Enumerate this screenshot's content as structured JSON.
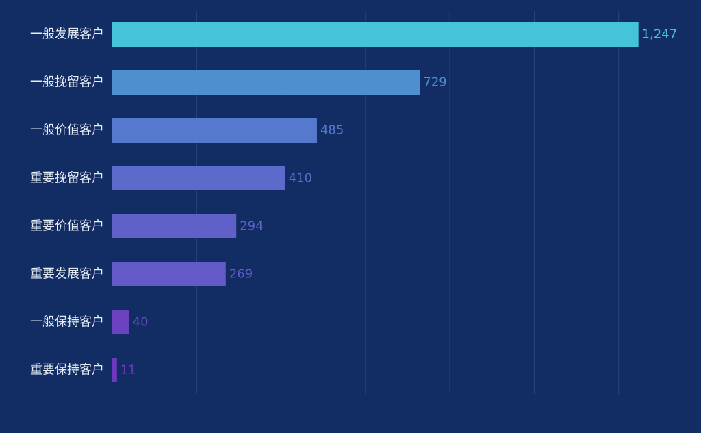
{
  "chart_data": {
    "type": "bar",
    "orientation": "horizontal",
    "title": "",
    "xlabel": "",
    "ylabel": "",
    "categories": [
      "一般发展客户",
      "一般挽留客户",
      "一般价值客户",
      "重要挽留客户",
      "重要价值客户",
      "重要发展客户",
      "一般保持客户",
      "重要保持客户"
    ],
    "values": [
      1247,
      729,
      485,
      410,
      294,
      269,
      40,
      11
    ],
    "value_labels": [
      "1,247",
      "729",
      "485",
      "410",
      "294",
      "269",
      "40",
      "11"
    ],
    "xlim": [
      0,
      1400
    ],
    "grid": "vertical",
    "legend": "none",
    "bar_colors": [
      "#45c4d9",
      "#4e8fd0",
      "#5579cd",
      "#5c6acb",
      "#6160c9",
      "#6359c7",
      "#6b43c1",
      "#6e38bf"
    ],
    "label_colors": [
      "#45c4d9",
      "#4e8fd0",
      "#5579cd",
      "#5c6acb",
      "#6160c9",
      "#6359c7",
      "#6b43c1",
      "#6e38bf"
    ],
    "background": "#112d63",
    "grid_color": "#2a4680",
    "text_color": "#e6ecf7"
  }
}
